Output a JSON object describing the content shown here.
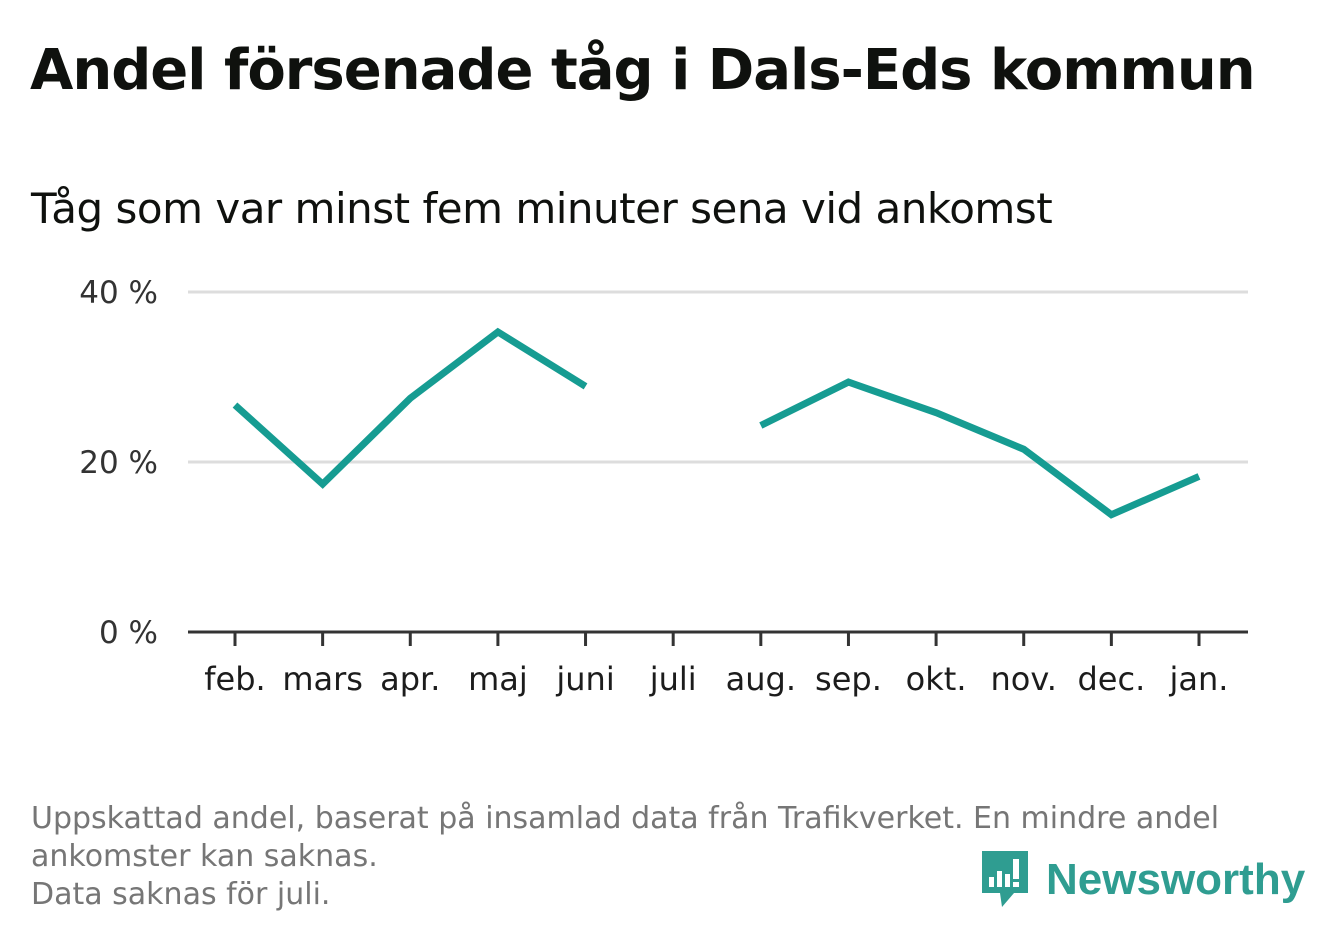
{
  "title": "Andel försenade tåg i Dals-Eds kommun",
  "subtitle": "Tåg som var minst fem minuter sena vid ankomst",
  "notes": [
    "Uppskattad andel, baserat på insamlad data från Trafikverket. En mindre andel",
    "ankomster kan saknas.",
    "Data saknas för juli."
  ],
  "brand": {
    "name": "Newsworthy",
    "icon": "newsworthy-logo-icon",
    "color": "#2f9d91"
  },
  "chart_data": {
    "type": "line",
    "categories": [
      "feb.",
      "mars",
      "apr.",
      "maj",
      "juni",
      "juli",
      "aug.",
      "sep.",
      "okt.",
      "nov.",
      "dec.",
      "jan."
    ],
    "series": [
      {
        "values": [
          26.7,
          17.4,
          27.5,
          35.3,
          28.9,
          null,
          24.3,
          29.4,
          25.8,
          21.5,
          13.8,
          18.3
        ],
        "color": "#169c92"
      }
    ],
    "yticks": [
      0,
      20,
      40
    ],
    "ytick_labels": [
      "0 %",
      "20 %",
      "40 %"
    ],
    "ylim": [
      0,
      40
    ],
    "grid": true,
    "xlabel": "",
    "ylabel": ""
  }
}
